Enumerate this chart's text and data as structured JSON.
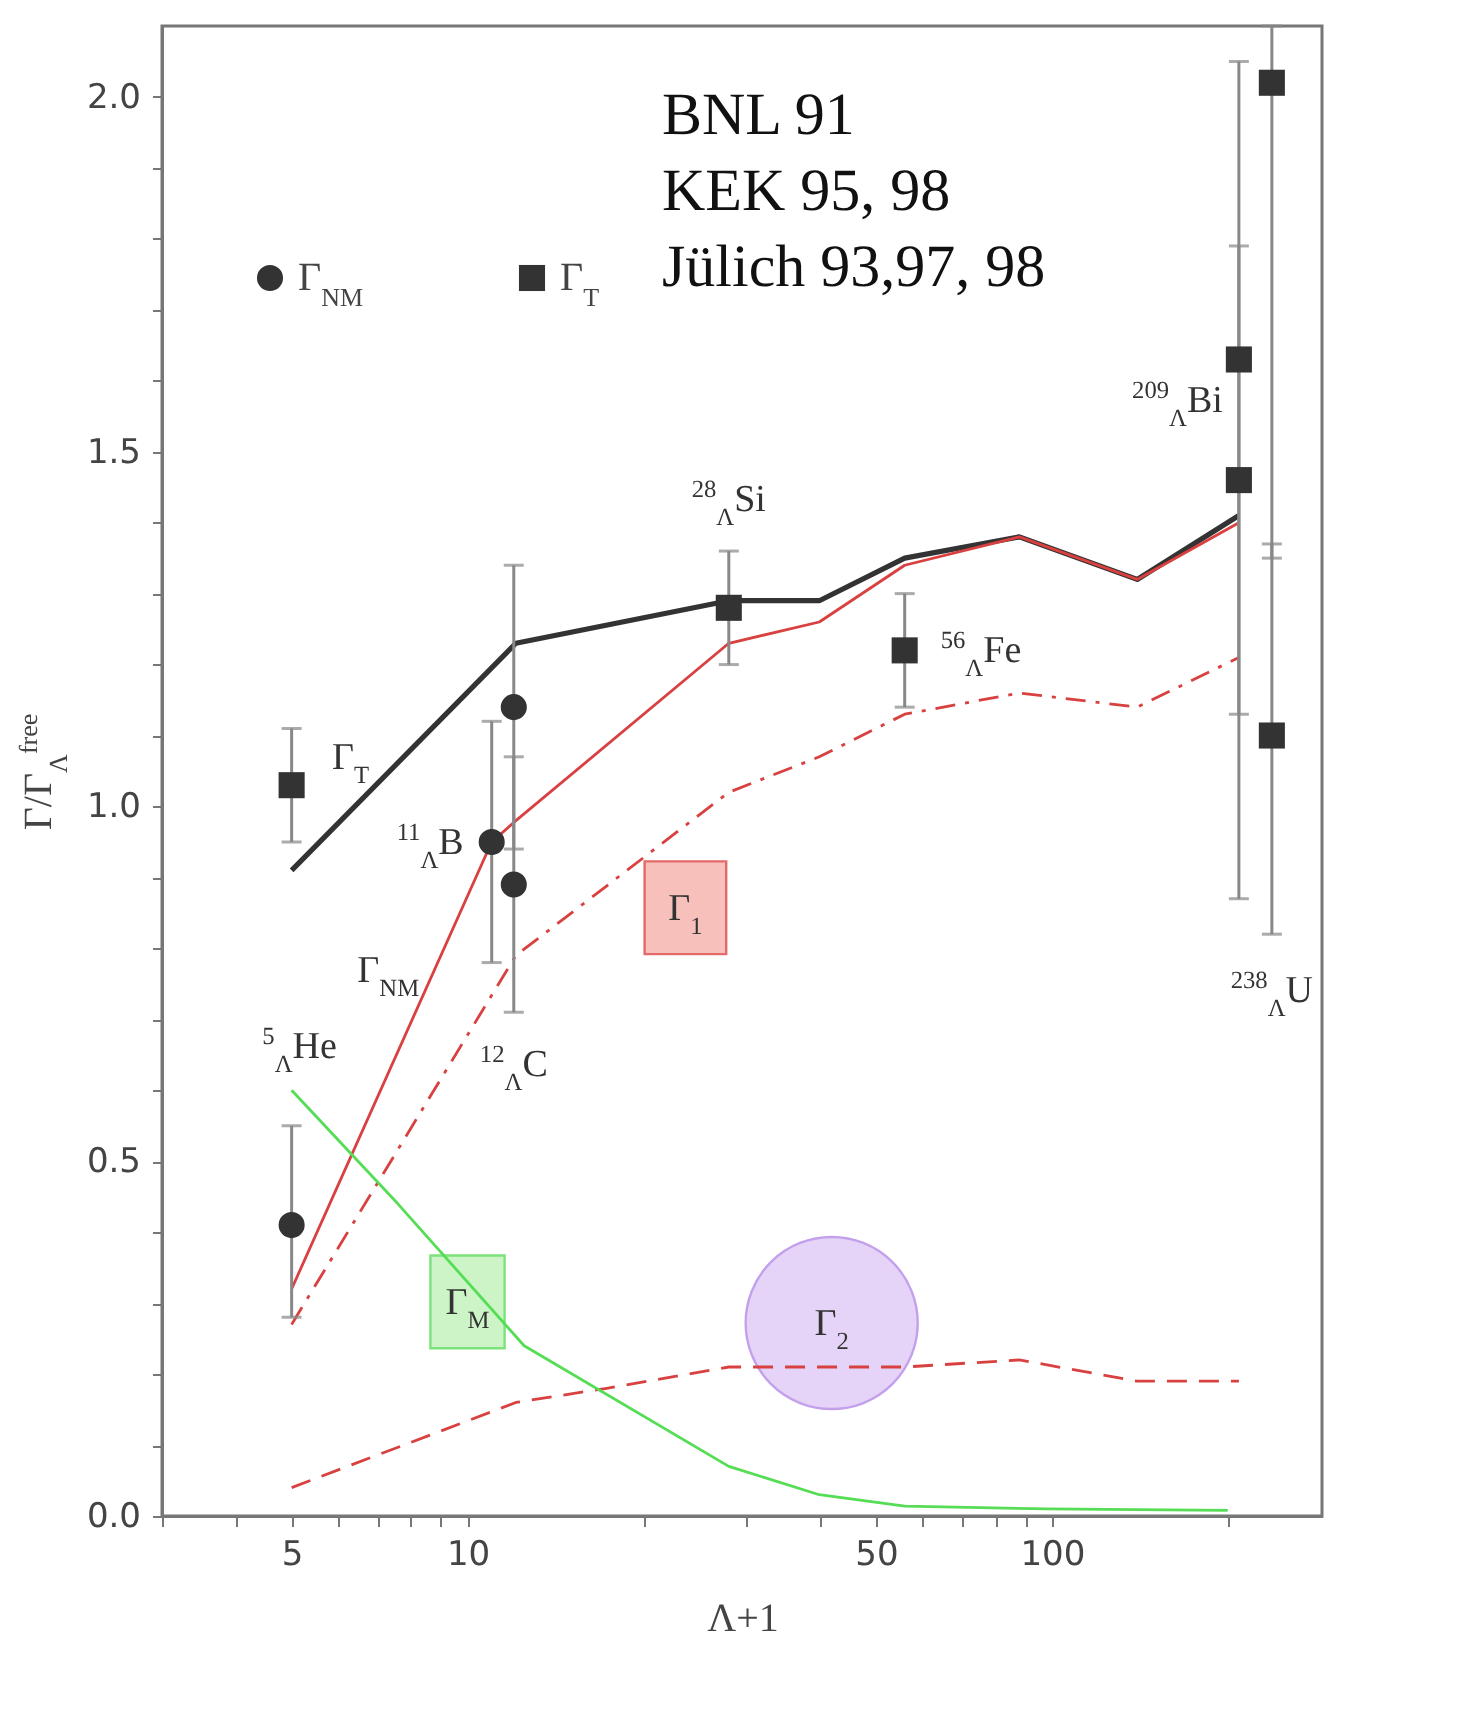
{
  "chart_data": {
    "type": "line",
    "xlabel": "Λ+1",
    "ylabel": "Γ/Γ$_{Λ}$$^{free}$",
    "log": "x",
    "grid": false,
    "legend": "top left",
    "xlim": [
      3,
      290
    ],
    "xticks": [
      {
        "value": 3,
        "label": null
      },
      {
        "value": 4,
        "label": null
      },
      5,
      {
        "value": 6,
        "label": null
      },
      {
        "value": 7,
        "label": null
      },
      {
        "value": 8,
        "label": null
      },
      {
        "value": 9,
        "label": null
      },
      10,
      {
        "value": 20,
        "label": null
      },
      {
        "value": 30,
        "label": null
      },
      {
        "value": 40,
        "label": null
      },
      50,
      {
        "value": 60,
        "label": null
      },
      {
        "value": 70,
        "label": null
      },
      {
        "value": 80,
        "label": null
      },
      {
        "value": 90,
        "label": null
      },
      100,
      {
        "value": 200,
        "label": null
      }
    ],
    "ylim": [
      0,
      2.1
    ],
    "yticks": [
      {
        "value": 0,
        "label": "0.0"
      },
      {
        "value": 0.1,
        "label": null
      },
      {
        "value": 0.2,
        "label": null
      },
      {
        "value": 0.3,
        "label": null
      },
      {
        "value": 0.4,
        "label": null
      },
      {
        "value": 0.5,
        "label": "0.5"
      },
      {
        "value": 0.6,
        "label": null
      },
      {
        "value": 0.7,
        "label": null
      },
      {
        "value": 0.8,
        "label": null
      },
      {
        "value": 0.9,
        "label": null
      },
      {
        "value": 1,
        "label": "1.0"
      },
      {
        "value": 1.1,
        "label": null
      },
      {
        "value": 1.2,
        "label": null
      },
      {
        "value": 1.3,
        "label": null
      },
      {
        "value": 1.4,
        "label": null
      },
      {
        "value": 1.5,
        "label": "1.5"
      },
      {
        "value": 1.6,
        "label": null
      },
      {
        "value": 1.7,
        "label": null
      },
      {
        "value": 1.8,
        "label": null
      },
      {
        "value": 1.9,
        "label": null
      },
      {
        "value": 2,
        "label": "2.0"
      }
    ],
    "series": [
      {
        "color": "#333333",
        "line_style": "solid",
        "x": [
          5,
          12.1,
          28,
          40,
          56,
          88,
          140,
          209
        ],
        "values": [
          0.91,
          1.23,
          1.29,
          1.29,
          1.35,
          1.38,
          1.32,
          1.41
        ]
      },
      {
        "color": "#d94040",
        "line_style": "solid",
        "x": [
          5,
          11,
          12.1,
          28,
          40,
          56,
          88,
          140,
          209
        ],
        "values": [
          0.32,
          0.95,
          0.98,
          1.23,
          1.26,
          1.34,
          1.38,
          1.32,
          1.4
        ]
      },
      {
        "color": "#d94040",
        "line_style": "dashdot",
        "x": [
          5,
          12.1,
          28,
          40,
          56,
          88,
          140,
          209
        ],
        "values": [
          0.27,
          0.79,
          1.02,
          1.07,
          1.13,
          1.16,
          1.14,
          1.21
        ]
      },
      {
        "color": "#d94040",
        "line_style": "dashed",
        "x": [
          5,
          12.1,
          17.3,
          28,
          56,
          88,
          140,
          209
        ],
        "values": [
          0.04,
          0.16,
          0.18,
          0.21,
          0.21,
          0.22,
          0.19,
          0.19
        ]
      },
      {
        "color": "#55dd55",
        "line_style": "solid",
        "x": [
          5,
          7.6,
          12.5,
          28,
          40,
          56,
          98,
          200
        ],
        "values": [
          0.6,
          0.44,
          0.24,
          0.07,
          0.03,
          0.014,
          0.01,
          0.008
        ]
      },
      {
        "type": "scatter",
        "name": "Γ$_{NM}$",
        "color": "#333333",
        "marker": "circle",
        "x": [
          5,
          11,
          12,
          12
        ],
        "values": [
          0.41,
          0.95,
          1.14,
          0.89
        ],
        "errors": [
          [
            0.28,
            0.55
          ],
          [
            0.78,
            1.12
          ],
          [
            0.94,
            1.34
          ],
          [
            0.71,
            1.07
          ]
        ]
      },
      {
        "type": "scatter",
        "name": "Γ$_{T}$",
        "color": "#333333",
        "marker": "square",
        "x": [
          5,
          28,
          56,
          209,
          209,
          238,
          238
        ],
        "values": [
          1.03,
          1.28,
          1.22,
          1.63,
          1.46,
          2.02,
          1.1
        ],
        "errors": [
          [
            0.95,
            1.11
          ],
          [
            1.2,
            1.36
          ],
          [
            1.14,
            1.3
          ],
          [
            0.87,
            2.05
          ],
          [
            1.13,
            1.79
          ],
          [
            1.35,
            2.1
          ],
          [
            0.82,
            1.37
          ]
        ]
      }
    ],
    "annotations": [
      "BNL 91",
      "KEK 95, 98",
      "Jülich 93,97, 98",
      {
        "text": "Γ$_{T}$",
        "x": 7,
        "y": 1.03
      },
      {
        "text": "Γ$_{NM}$",
        "x": 8.8,
        "y": 0.77
      },
      {
        "text": "Γ$_{1}$",
        "x": 23.6,
        "y": 0.97
      },
      {
        "text": "Γ$_{M}$",
        "x": 10,
        "y": 0.33
      },
      {
        "text": "Γ$_{2}$",
        "x": 42,
        "y": 0.21
      },
      {
        "text": "$^{5}$$_{Λ}$He",
        "x": 5,
        "y": 0.6
      },
      {
        "text": "$^{11}$$_{Λ}$B",
        "x": 11,
        "y": 0.95
      },
      {
        "text": "$^{12}$$_{Λ}$C",
        "x": 12,
        "y": 0.71
      },
      {
        "text": "$^{28}$$_{Λ}$Si",
        "x": 28,
        "y": 1.36
      },
      {
        "text": "$^{56}$$_{Λ}$Fe",
        "x": 56,
        "y": 1.22
      },
      {
        "text": "$^{209}$$_{Λ}$Bi",
        "x": 209,
        "y": 1.46
      },
      {
        "text": "$^{238}$$_{Λ}$U",
        "x": 238,
        "y": 0.82
      }
    ]
  }
}
